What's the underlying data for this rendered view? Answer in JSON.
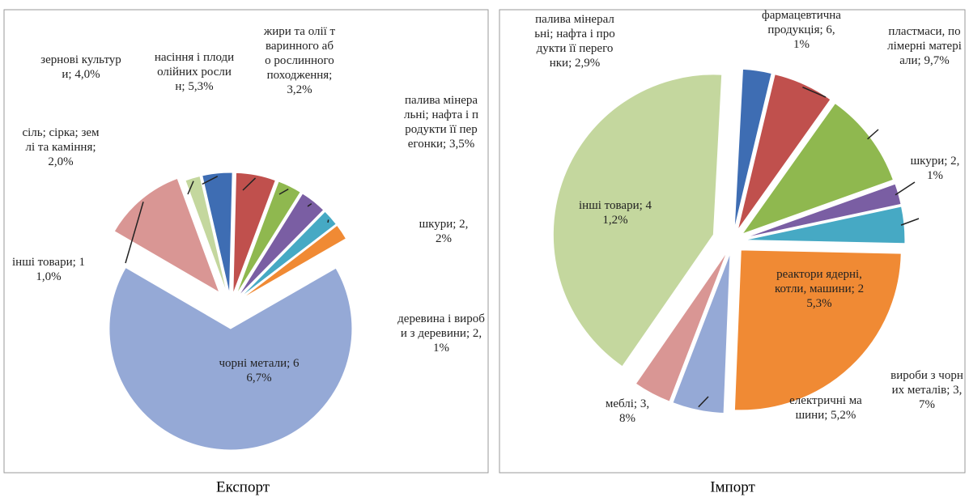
{
  "chart_data": [
    {
      "type": "pie",
      "title": "Експорт",
      "categories": [
        "зернові культури;",
        "насіння і плоди олійних рослин;",
        "жири та олії тваринного або рослинного походження;",
        "палива мінеральні; нафта і продукти її перегонки;",
        "шкури;",
        "деревина і вироби з деревини;",
        "чорні метали;",
        "інші товари;",
        "сіль; сірка; землі та каміння;"
      ],
      "values": [
        4.0,
        5.3,
        3.2,
        3.5,
        2.2,
        2.1,
        66.7,
        11.0,
        2.0
      ],
      "value_labels": [
        "4,0%",
        "5,3%",
        "3,2%",
        "3,5%",
        "2,2%",
        "2,1%",
        "66,7%",
        "11,0%",
        "2,0%"
      ],
      "colors": [
        "#3e6db3",
        "#c0504d",
        "#8fb84f",
        "#7a5ea3",
        "#46a9c4",
        "#f08a34",
        "#95a9d6",
        "#d99694",
        "#c4d79e"
      ]
    },
    {
      "type": "pie",
      "title": "Імпорт",
      "categories": [
        "палива мінеральні; нафта і продукти її перегонки;",
        "фармацевтична продукція;",
        "пластмаси, полімерні матеріали;",
        "шкури;",
        "вироби з чорних металів;",
        "реактори ядерні, котли, машини;",
        "електричні машини;",
        "меблі;",
        "інші товари;"
      ],
      "values": [
        2.9,
        6.1,
        9.7,
        2.1,
        3.7,
        25.3,
        5.2,
        3.8,
        41.2
      ],
      "value_labels": [
        "2,9%",
        "6,1%",
        "9,7%",
        "2,1%",
        "3,7%",
        "25,3%",
        "5,2%",
        "3,8%",
        "41,2%"
      ],
      "colors": [
        "#3e6db3",
        "#c0504d",
        "#8fb84f",
        "#7a5ea3",
        "#46a9c4",
        "#f08a34",
        "#95a9d6",
        "#d99694",
        "#c4d79e"
      ]
    }
  ]
}
